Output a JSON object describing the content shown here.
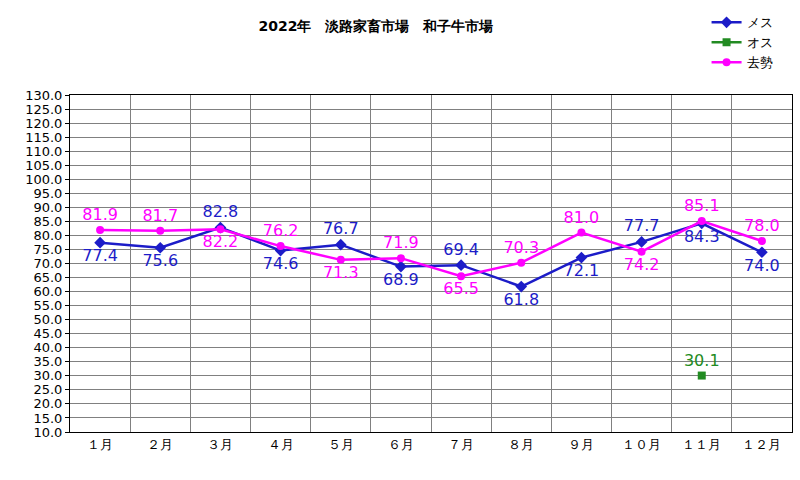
{
  "chart_data": {
    "type": "line",
    "title": "2022年　淡路家畜市場　和子牛市場",
    "categories": [
      "１月",
      "２月",
      "３月",
      "４月",
      "５月",
      "６月",
      "７月",
      "８月",
      "９月",
      "１０月",
      "１１月",
      "１２月"
    ],
    "series": [
      {
        "name": "メス",
        "color": "#1c1cc8",
        "marker": "diamond",
        "values": [
          77.4,
          75.6,
          82.8,
          74.6,
          76.7,
          68.9,
          69.4,
          61.8,
          72.1,
          77.7,
          84.3,
          74.0
        ],
        "value_labels": [
          "77.4",
          "75.6",
          "82.8",
          "74.6",
          "76.7",
          "68.9",
          "69.4",
          "61.8",
          "72.1",
          "77.7",
          "84.3",
          "74.0"
        ]
      },
      {
        "name": "オス",
        "color": "#228b22",
        "marker": "square",
        "values": [
          null,
          null,
          null,
          null,
          null,
          null,
          null,
          null,
          null,
          null,
          30.1,
          null
        ],
        "value_labels": [
          null,
          null,
          null,
          null,
          null,
          null,
          null,
          null,
          null,
          null,
          "30.1",
          null
        ]
      },
      {
        "name": "去勢",
        "color": "#ff00ff",
        "marker": "circle",
        "values": [
          81.9,
          81.7,
          82.2,
          76.2,
          71.3,
          71.9,
          65.5,
          70.3,
          81.0,
          74.2,
          85.1,
          78.0
        ],
        "value_labels": [
          "81.9",
          "81.7",
          "82.2",
          "76.2",
          "71.3",
          "71.9",
          "65.5",
          "70.3",
          "81.0",
          "74.2",
          "85.1",
          "78.0"
        ]
      }
    ],
    "ylim": [
      10,
      130
    ],
    "yticks": [
      {
        "value": 10,
        "label": "10.0"
      },
      {
        "value": 15,
        "label": "15.0"
      },
      {
        "value": 20,
        "label": "20.0"
      },
      {
        "value": 25,
        "label": "25.0"
      },
      {
        "value": 30,
        "label": "30.0"
      },
      {
        "value": 35,
        "label": "35.0"
      },
      {
        "value": 40,
        "label": "40.0"
      },
      {
        "value": 45,
        "label": "45.0"
      },
      {
        "value": 50,
        "label": "50.0"
      },
      {
        "value": 55,
        "label": "55.0"
      },
      {
        "value": 60,
        "label": "60.0"
      },
      {
        "value": 65,
        "label": "65.0"
      },
      {
        "value": 70,
        "label": "70.0"
      },
      {
        "value": 75,
        "label": "75.0"
      },
      {
        "value": 80,
        "label": "80.0"
      },
      {
        "value": 85,
        "label": "85.0"
      },
      {
        "value": 90,
        "label": "90.0"
      },
      {
        "value": 95,
        "label": "95.0"
      },
      {
        "value": 100,
        "label": "100.0"
      },
      {
        "value": 105,
        "label": "105.0"
      },
      {
        "value": 110,
        "label": "110.0"
      },
      {
        "value": 115,
        "label": "115.0"
      },
      {
        "value": 120,
        "label": "120.0"
      },
      {
        "value": 125,
        "label": "125.0"
      },
      {
        "value": 130,
        "label": "130.0"
      }
    ],
    "grid": true,
    "data_labels": true,
    "legend": "top right"
  }
}
